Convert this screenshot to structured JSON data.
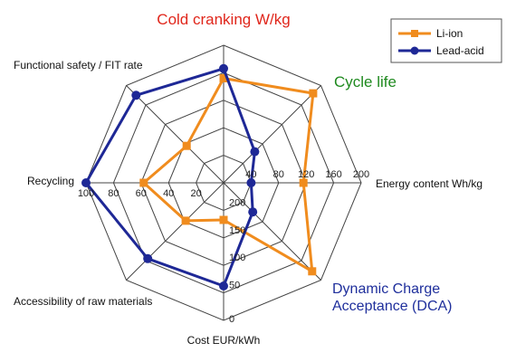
{
  "chart_data": {
    "type": "radar",
    "axes": [
      {
        "label": "Cold cranking W/kg",
        "color": "#e0261b",
        "emphasis": true
      },
      {
        "label": "Cycle life",
        "color": "#1f8a1f",
        "emphasis": true
      },
      {
        "label": "Energy content Wh/kg",
        "color": "#111111",
        "emphasis": false
      },
      {
        "label": "Dynamic Charge Acceptance (DCA)",
        "lines": [
          "Dynamic Charge",
          "Acceptance (DCA)"
        ],
        "color": "#1f2f9c",
        "emphasis": true
      },
      {
        "label": "Cost EUR/kWh",
        "color": "#111111",
        "emphasis": false
      },
      {
        "label": "Accessibility of raw materials",
        "color": "#111111",
        "emphasis": false
      },
      {
        "label": "Recycling",
        "color": "#111111",
        "emphasis": false
      },
      {
        "label": "Functional safety / FIT rate",
        "color": "#111111",
        "emphasis": false
      }
    ],
    "scale_levels": 5,
    "energy_ticks": [
      "40",
      "80",
      "120",
      "160",
      "200"
    ],
    "recycling_ticks": [
      "100",
      "80",
      "60",
      "40",
      "20"
    ],
    "cost_ticks": [
      "200",
      "150",
      "100",
      "50",
      "0"
    ],
    "series": [
      {
        "name": "Li-ion",
        "color": "#f08c1e",
        "marker": "square",
        "values": [
          0.76,
          0.92,
          0.58,
          0.91,
          0.27,
          0.39,
          0.58,
          0.38
        ]
      },
      {
        "name": "Lead-acid",
        "color": "#1e2896",
        "marker": "circle",
        "values": [
          0.83,
          0.32,
          0.2,
          0.3,
          0.75,
          0.78,
          1.0,
          0.9
        ]
      }
    ],
    "legend_position": "top-right",
    "grid": true
  }
}
